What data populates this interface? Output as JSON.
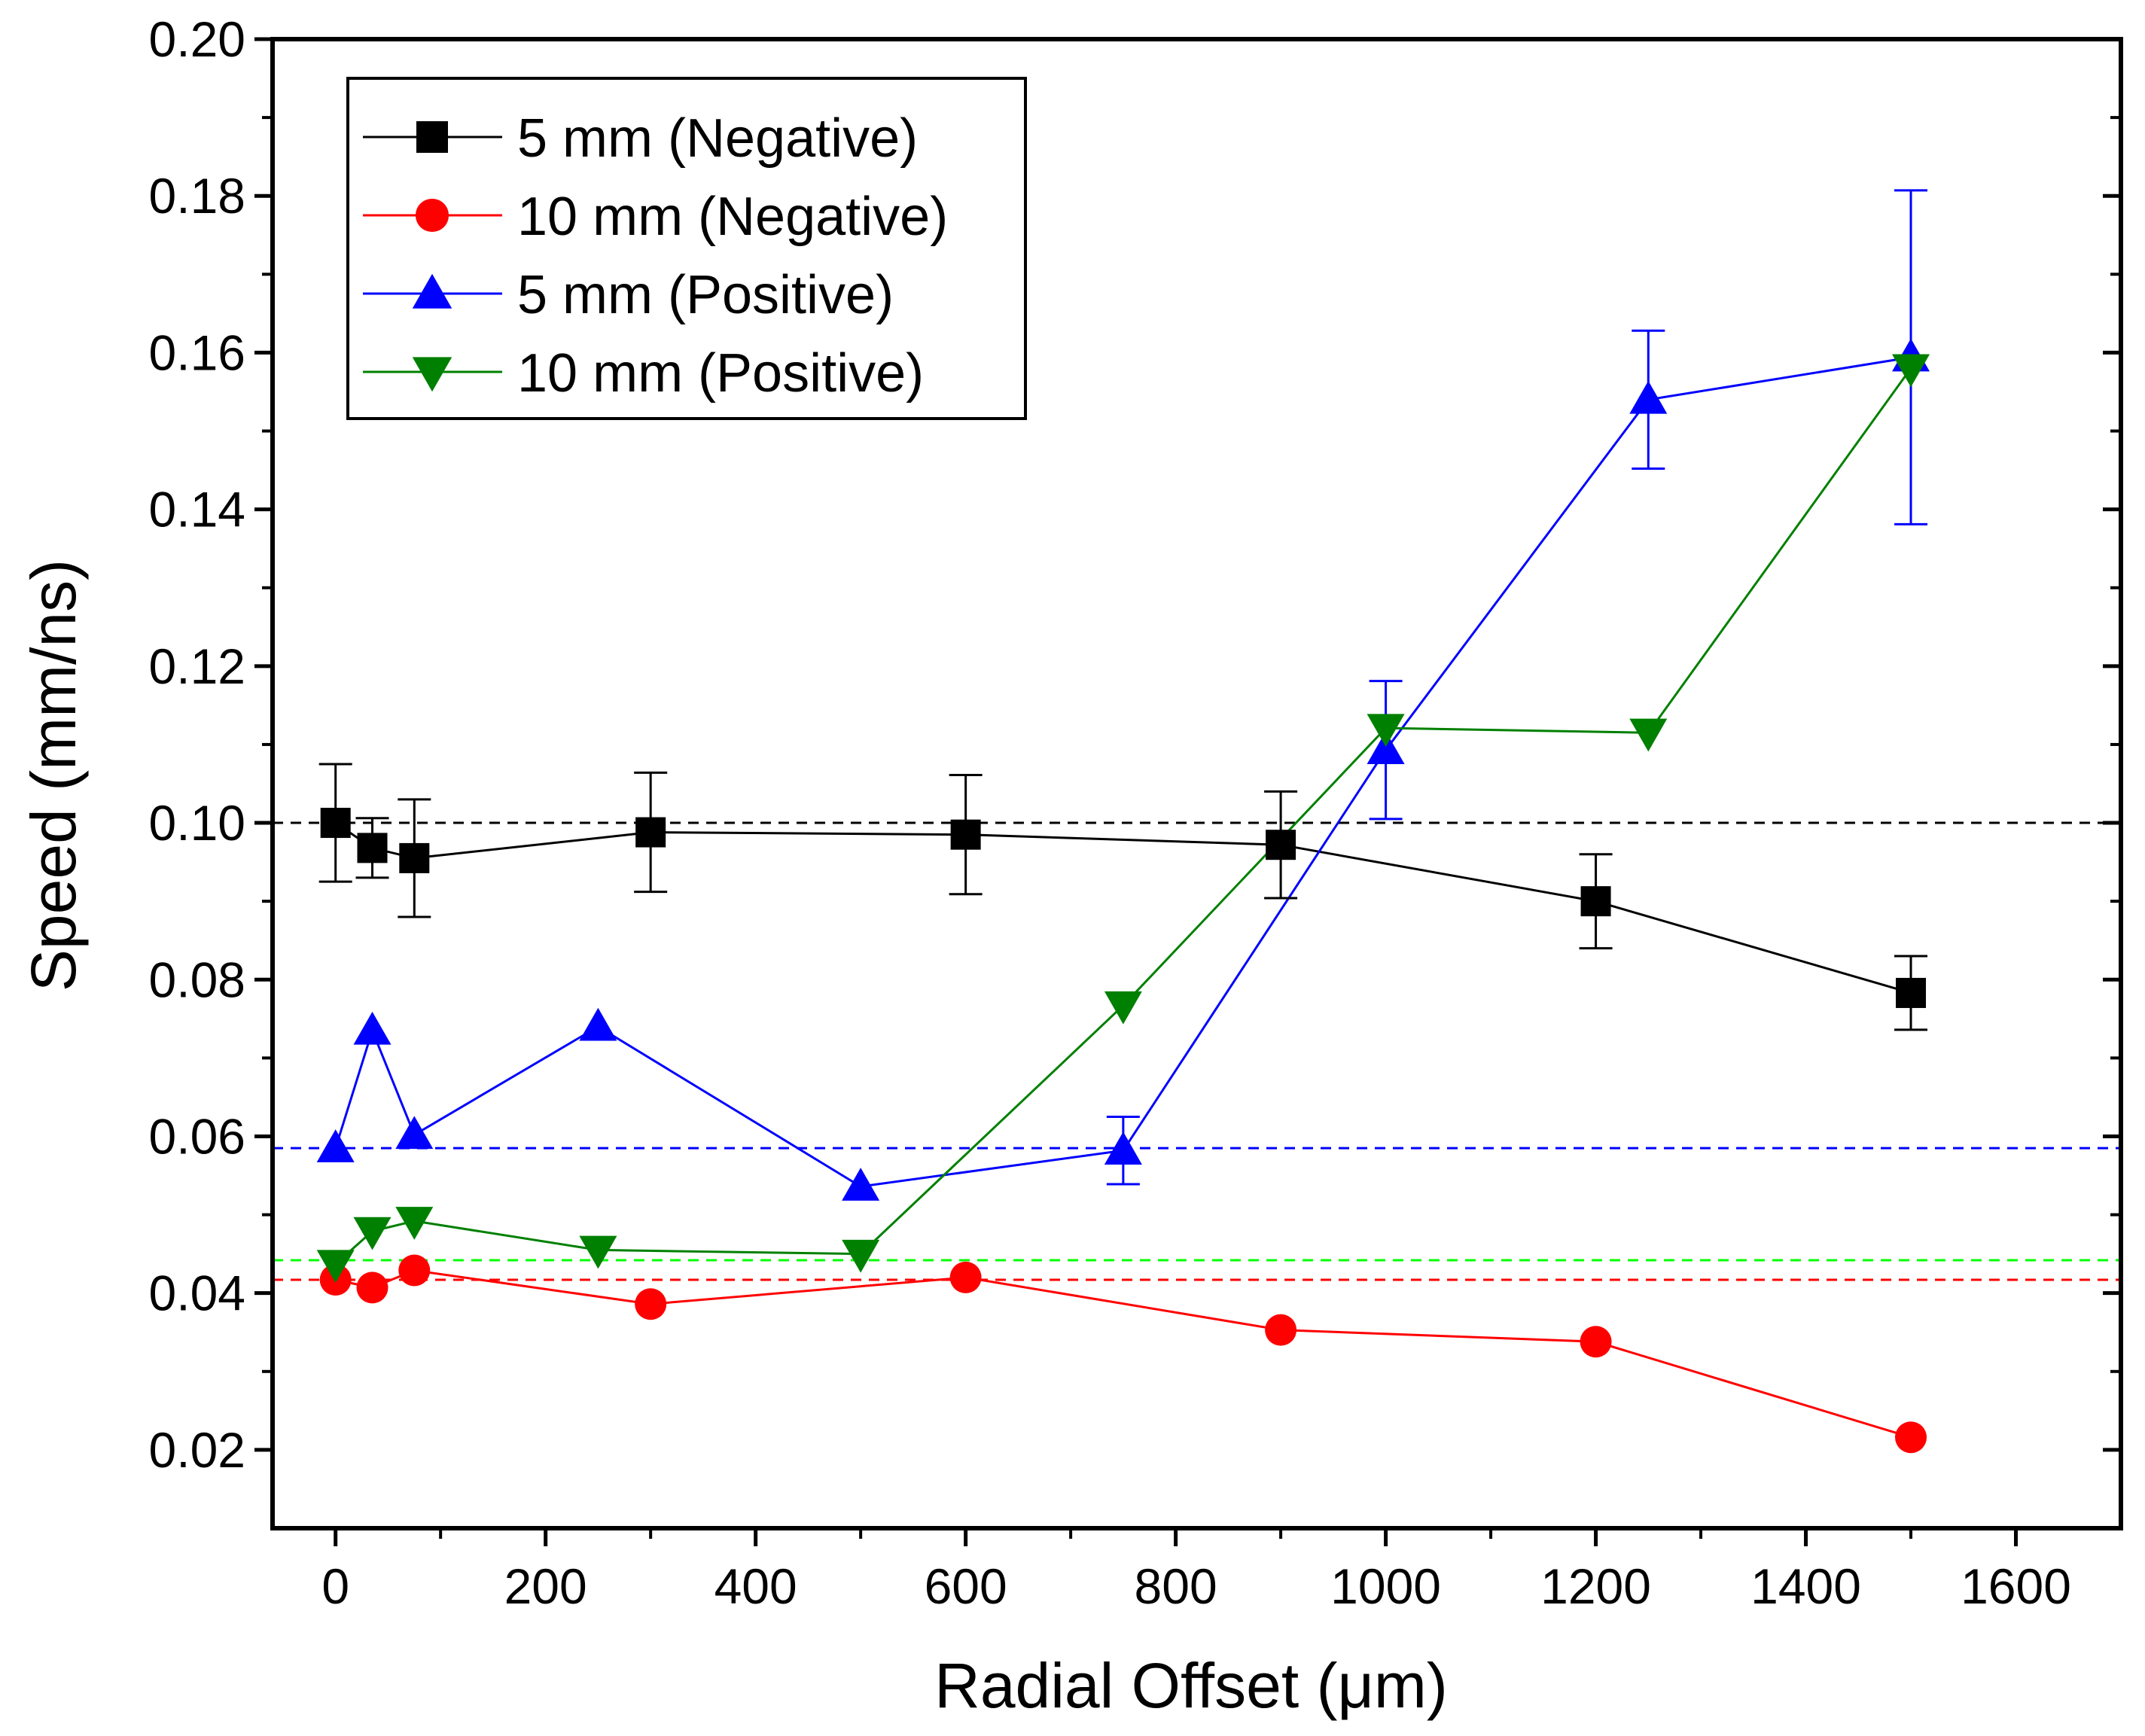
{
  "chart_data": {
    "type": "line",
    "xlabel": "Radial Offset (μm)",
    "ylabel": "Speed (mm/ns)",
    "xlim": [
      -60,
      1700
    ],
    "ylim": [
      0.01,
      0.2
    ],
    "xticks": [
      0,
      200,
      400,
      600,
      800,
      1000,
      1200,
      1400,
      1600
    ],
    "yticks": [
      0.02,
      0.04,
      0.06,
      0.08,
      0.1,
      0.12,
      0.14,
      0.16,
      0.18,
      0.2
    ],
    "ytick_labels": [
      "0.02",
      "0.04",
      "0.06",
      "0.08",
      "0.10",
      "0.12",
      "0.14",
      "0.16",
      "0.18",
      "0.20"
    ],
    "legend_position": "top-left",
    "series": [
      {
        "name": "5 mm (Negative)",
        "color": "#000000",
        "marker": "square",
        "x": [
          0,
          35,
          75,
          300,
          600,
          900,
          1200,
          1500
        ],
        "y": [
          0.1,
          0.0968,
          0.0955,
          0.0988,
          0.0985,
          0.0972,
          0.09,
          0.0783
        ],
        "err": [
          0.0075,
          0.0038,
          0.0075,
          0.0076,
          0.0076,
          0.0068,
          0.006,
          0.0047
        ]
      },
      {
        "name": "10 mm (Negative)",
        "color": "#ff0000",
        "marker": "circle",
        "x": [
          0,
          35,
          75,
          300,
          600,
          900,
          1200,
          1500
        ],
        "y": [
          0.0417,
          0.0407,
          0.0429,
          0.0386,
          0.042,
          0.0353,
          0.0338,
          0.0216
        ],
        "err": [
          0,
          0,
          0,
          0,
          0,
          0,
          0,
          0
        ]
      },
      {
        "name": "5 mm (Positive)",
        "color": "#0000ff",
        "marker": "triangle-up",
        "x": [
          0,
          35,
          75,
          250,
          500,
          750,
          1000,
          1250,
          1500
        ],
        "y": [
          0.0585,
          0.0735,
          0.0602,
          0.074,
          0.0536,
          0.0582,
          0.1093,
          0.154,
          0.1594
        ],
        "err": [
          0,
          0,
          0,
          0,
          0,
          0.0043,
          0.0088,
          0.0088,
          0.0213
        ]
      },
      {
        "name": "10 mm (Positive)",
        "color": "#008000",
        "marker": "triangle-down",
        "x": [
          0,
          35,
          75,
          250,
          500,
          750,
          1000,
          1250,
          1500
        ],
        "y": [
          0.0437,
          0.0479,
          0.0492,
          0.0455,
          0.045,
          0.0767,
          0.1121,
          0.1115,
          0.158
        ],
        "err": [
          0,
          0,
          0,
          0,
          0,
          0,
          0,
          0,
          0
        ]
      }
    ],
    "reference_lines": [
      {
        "y": 0.1,
        "color": "#000000",
        "style": "dashed"
      },
      {
        "y": 0.0585,
        "color": "#0000ff",
        "style": "dashed"
      },
      {
        "y": 0.0442,
        "color": "#00ff00",
        "style": "dashed"
      },
      {
        "y": 0.0417,
        "color": "#ff0000",
        "style": "dashed"
      }
    ]
  }
}
